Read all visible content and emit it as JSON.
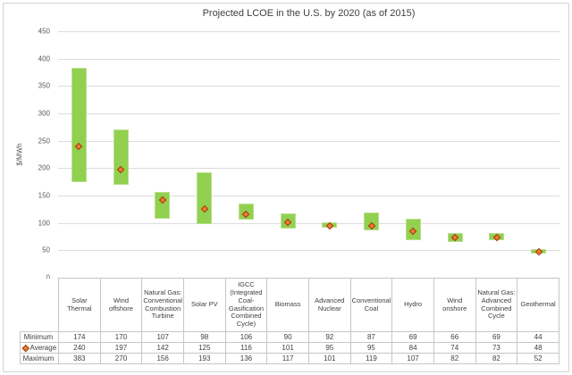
{
  "chart": {
    "title": "Projected LCOE in the U.S. by 2020 (as of 2015)",
    "ylabel": "$/MWh"
  },
  "chart_data": {
    "type": "bar",
    "subtype": "floating-range-bars-with-average-markers",
    "title": "Projected LCOE in the U.S. by 2020 (as of 2015)",
    "xlabel": "",
    "ylabel": "$/MWh",
    "ylim": [
      0,
      450
    ],
    "yticks": [
      0,
      50,
      100,
      150,
      200,
      250,
      300,
      350,
      400,
      450
    ],
    "grid": true,
    "legend_position": "data-table-left",
    "categories": [
      "Solar Thermal",
      "Wind offshore",
      "Natural Gas: Conventional Combustion Turbine",
      "Solar PV",
      "IGCC (Integrated Coal-Gasification Combined Cycle)",
      "Biomass",
      "Advanced Nuclear",
      "Conventional Coal",
      "Hydro",
      "Wind onshore",
      "Natural Gas: Advanced Combined Cycle",
      "Geothermal"
    ],
    "series": [
      {
        "name": "Minimum",
        "values": [
          174,
          170,
          107,
          98,
          106,
          90,
          92,
          87,
          69,
          66,
          69,
          44
        ]
      },
      {
        "name": "Average",
        "values": [
          240,
          197,
          142,
          125,
          116,
          101,
          95,
          95,
          84,
          74,
          73,
          48
        ],
        "marker": "diamond"
      },
      {
        "name": "Maximum",
        "values": [
          383,
          270,
          156,
          193,
          136,
          117,
          101,
          119,
          107,
          82,
          82,
          52
        ]
      }
    ],
    "colors": {
      "bar_fill": "#92d050",
      "bar_border": "#b9e08c",
      "marker_fill": "#ed7d31",
      "marker_border": "#9e3a10",
      "gridline": "#dcdcdc",
      "table_border": "#c6c6c6",
      "axis_text": "#595959",
      "title_text": "#3f3f3f"
    }
  }
}
